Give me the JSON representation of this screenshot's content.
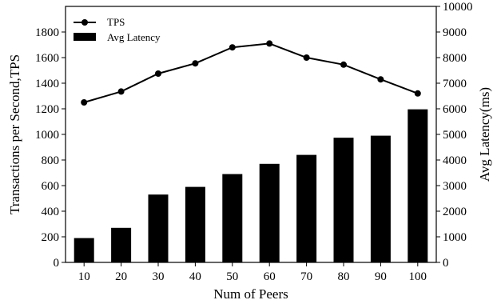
{
  "chart_data": {
    "type": "bar+line",
    "categories": [
      "10",
      "20",
      "30",
      "40",
      "50",
      "60",
      "70",
      "80",
      "90",
      "100"
    ],
    "series": [
      {
        "name": "TPS",
        "kind": "line",
        "axis": "left",
        "marker": "circle",
        "color": "#000000",
        "values": [
          1250,
          1335,
          1475,
          1555,
          1680,
          1710,
          1600,
          1545,
          1430,
          1320
        ]
      },
      {
        "name": "Avg Latency",
        "kind": "bar",
        "axis": "right",
        "color": "#000000",
        "values": [
          950,
          1350,
          2650,
          2950,
          3450,
          3850,
          4200,
          4870,
          4950,
          5980
        ]
      }
    ],
    "xlabel": "Num of Peers",
    "ylabel_left": "Transactions per Second,TPS",
    "ylabel_right": "Avg Latency(ms)",
    "ylim_left": [
      0,
      2000
    ],
    "ylim_right": [
      0,
      10000
    ],
    "yticks_left": [
      "0",
      "200",
      "400",
      "600",
      "800",
      "1000",
      "1200",
      "1400",
      "1600",
      "1800"
    ],
    "yticks_right": [
      "0",
      "1000",
      "2000",
      "3000",
      "4000",
      "5000",
      "6000",
      "7000",
      "8000",
      "9000",
      "10000"
    ],
    "legend": {
      "position": "top-left",
      "entries": [
        "TPS",
        "Avg Latency"
      ]
    },
    "grid": false
  }
}
